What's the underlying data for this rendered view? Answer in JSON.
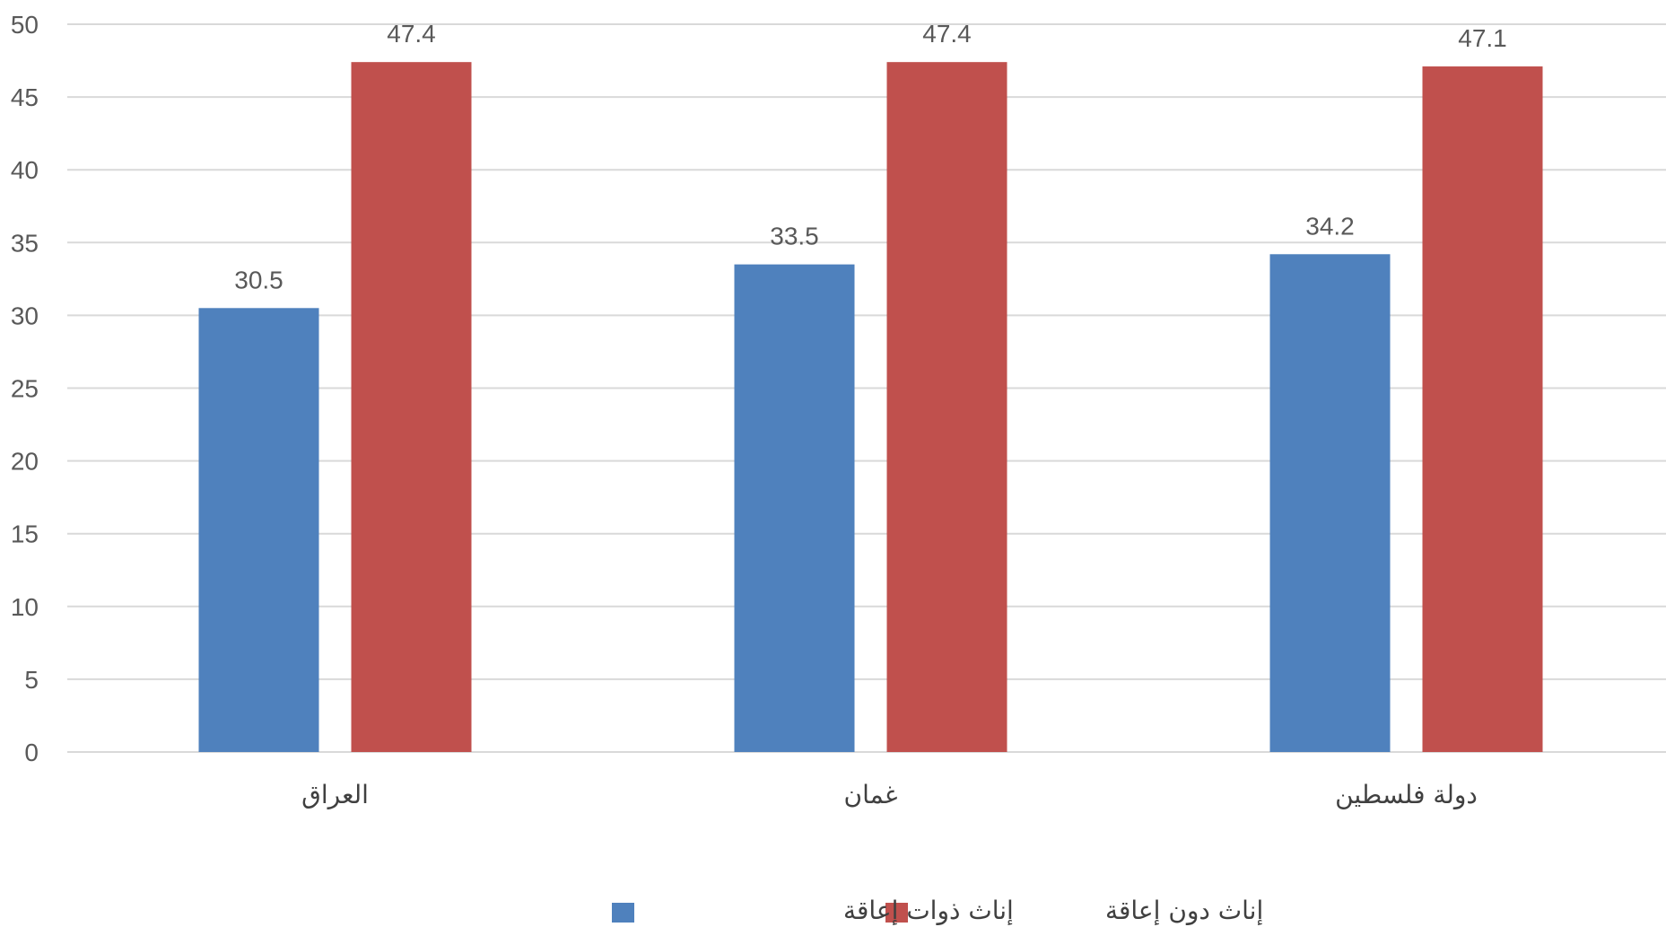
{
  "chart_data": {
    "type": "bar",
    "categories": [
      "العراق",
      "غمان",
      "دولة فلسطين"
    ],
    "series": [
      {
        "name": "إناث ذوات إعاقة",
        "color": "#4f81bd",
        "values": [
          30.5,
          33.5,
          34.2
        ],
        "labels": [
          "30.5",
          "33.5",
          "34.2"
        ]
      },
      {
        "name": "إناث دون إعاقة",
        "color": "#c0504d",
        "values": [
          47.4,
          47.4,
          47.1
        ],
        "labels": [
          "47.4",
          "47.4",
          "47.1"
        ]
      }
    ],
    "ylim": [
      0,
      50
    ],
    "yticks": [
      "0",
      "5",
      "10",
      "15",
      "20",
      "25",
      "30",
      "35",
      "40",
      "45",
      "50"
    ],
    "title": "",
    "xlabel": "",
    "ylabel": "",
    "grid": true,
    "legend_position": "bottom"
  }
}
